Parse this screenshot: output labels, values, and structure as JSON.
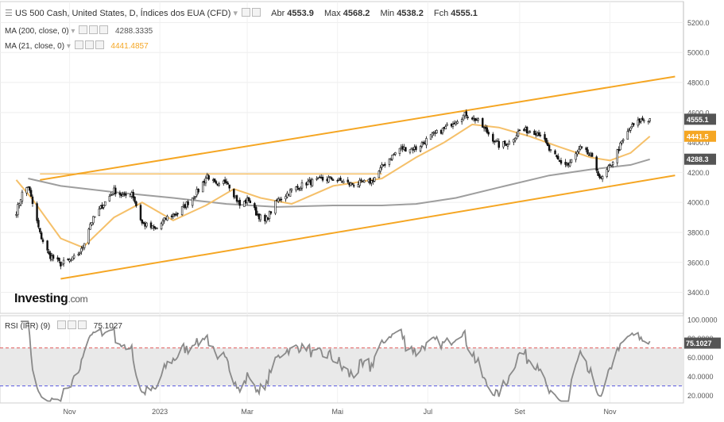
{
  "header": {
    "title": "US 500 Cash, United States, D, Índices dos EUA (CFD)",
    "open_label": "Abr",
    "open_value": "4553.9",
    "high_label": "Max",
    "high_value": "4568.2",
    "low_label": "Min",
    "low_value": "4538.2",
    "close_label": "Fch",
    "close_value": "4555.1"
  },
  "indicators": {
    "ma200": {
      "label": "MA (200, close, 0)",
      "value": "4288.3335",
      "color": "#9e9e9e"
    },
    "ma21": {
      "label": "MA (21, close, 0)",
      "value": "4441.4857",
      "color": "#f5a623"
    },
    "rsi": {
      "label": "RSI (IFR) (9)",
      "value": "75.1027"
    }
  },
  "logo": {
    "brand": "Investing",
    "suffix": ".com"
  },
  "colors": {
    "up": "#ffffff",
    "down": "#111111",
    "channel": "#f5a623",
    "ma21": "#f5c06a",
    "ma200": "#9e9e9e",
    "rsi_line": "#8a8a8a",
    "rsi_band": "#e9e9e9",
    "overbought": "#e05c5c",
    "oversold": "#5c5ce0",
    "price_tag": "#555555"
  },
  "chart_data": [
    {
      "type": "candlestick",
      "name": "US 500 Cash",
      "x_ticks": [
        "Nov",
        "2023",
        "Mar",
        "Mai",
        "Jul",
        "Set",
        "Nov"
      ],
      "y_ticks": [
        3400,
        3600,
        3800,
        4000,
        4200,
        4400,
        4600,
        4800,
        5000,
        5200
      ],
      "ylim": [
        3260,
        5340
      ],
      "price_tags": [
        "4555.1",
        "4441.5",
        "4288.3"
      ],
      "close_path": [
        [
          "2022-09-26",
          3940
        ],
        [
          "2022-09-30",
          4060
        ],
        [
          "2022-10-04",
          4110
        ],
        [
          "2022-10-07",
          3990
        ],
        [
          "2022-10-12",
          3790
        ],
        [
          "2022-10-18",
          3650
        ],
        [
          "2022-10-26",
          3590
        ],
        [
          "2022-11-03",
          3620
        ],
        [
          "2022-11-09",
          3680
        ],
        [
          "2022-11-15",
          3860
        ],
        [
          "2022-11-24",
          3990
        ],
        [
          "2022-12-01",
          4080
        ],
        [
          "2022-12-08",
          4040
        ],
        [
          "2022-12-13",
          4070
        ],
        [
          "2022-12-20",
          3860
        ],
        [
          "2022-12-29",
          3820
        ],
        [
          "2023-01-06",
          3900
        ],
        [
          "2023-01-13",
          3930
        ],
        [
          "2023-01-20",
          4000
        ],
        [
          "2023-01-27",
          4080
        ],
        [
          "2023-02-02",
          4180
        ],
        [
          "2023-02-09",
          4100
        ],
        [
          "2023-02-15",
          4150
        ],
        [
          "2023-02-24",
          3980
        ],
        [
          "2023-03-02",
          4020
        ],
        [
          "2023-03-07",
          3930
        ],
        [
          "2023-03-13",
          3870
        ],
        [
          "2023-03-21",
          4010
        ],
        [
          "2023-03-31",
          4080
        ],
        [
          "2023-04-10",
          4130
        ],
        [
          "2023-04-20",
          4150
        ],
        [
          "2023-04-28",
          4160
        ],
        [
          "2023-05-10",
          4120
        ],
        [
          "2023-05-24",
          4140
        ],
        [
          "2023-06-02",
          4260
        ],
        [
          "2023-06-12",
          4360
        ],
        [
          "2023-06-23",
          4360
        ],
        [
          "2023-07-03",
          4440
        ],
        [
          "2023-07-12",
          4490
        ],
        [
          "2023-07-20",
          4550
        ],
        [
          "2023-07-27",
          4590
        ],
        [
          "2023-08-03",
          4550
        ],
        [
          "2023-08-10",
          4470
        ],
        [
          "2023-08-18",
          4380
        ],
        [
          "2023-08-25",
          4400
        ],
        [
          "2023-09-01",
          4480
        ],
        [
          "2023-09-08",
          4480
        ],
        [
          "2023-09-15",
          4460
        ],
        [
          "2023-09-21",
          4350
        ],
        [
          "2023-09-28",
          4270
        ],
        [
          "2023-10-04",
          4250
        ],
        [
          "2023-10-12",
          4360
        ],
        [
          "2023-10-19",
          4310
        ],
        [
          "2023-10-26",
          4150
        ],
        [
          "2023-11-01",
          4240
        ],
        [
          "2023-11-08",
          4380
        ],
        [
          "2023-11-15",
          4500
        ],
        [
          "2023-11-22",
          4550
        ],
        [
          "2023-11-28",
          4555
        ]
      ],
      "ma21_path": [
        [
          "2022-09-26",
          4150
        ],
        [
          "2022-10-07",
          4020
        ],
        [
          "2022-10-26",
          3760
        ],
        [
          "2022-11-10",
          3700
        ],
        [
          "2022-12-01",
          3900
        ],
        [
          "2022-12-20",
          4000
        ],
        [
          "2023-01-10",
          3880
        ],
        [
          "2023-02-01",
          3980
        ],
        [
          "2023-02-20",
          4090
        ],
        [
          "2023-03-10",
          4030
        ],
        [
          "2023-03-31",
          3990
        ],
        [
          "2023-04-28",
          4110
        ],
        [
          "2023-05-31",
          4160
        ],
        [
          "2023-06-23",
          4300
        ],
        [
          "2023-07-12",
          4400
        ],
        [
          "2023-07-31",
          4520
        ],
        [
          "2023-08-18",
          4500
        ],
        [
          "2023-09-08",
          4440
        ],
        [
          "2023-09-28",
          4370
        ],
        [
          "2023-10-19",
          4300
        ],
        [
          "2023-11-01",
          4280
        ],
        [
          "2023-11-15",
          4330
        ],
        [
          "2023-11-28",
          4441
        ]
      ],
      "ma200_path": [
        [
          "2022-10-04",
          4160
        ],
        [
          "2022-10-26",
          4110
        ],
        [
          "2022-11-30",
          4070
        ],
        [
          "2023-01-10",
          4030
        ],
        [
          "2023-02-15",
          3990
        ],
        [
          "2023-03-21",
          3970
        ],
        [
          "2023-04-28",
          3980
        ],
        [
          "2023-05-31",
          3980
        ],
        [
          "2023-06-23",
          3990
        ],
        [
          "2023-07-20",
          4030
        ],
        [
          "2023-08-18",
          4100
        ],
        [
          "2023-09-21",
          4180
        ],
        [
          "2023-10-19",
          4220
        ],
        [
          "2023-11-15",
          4250
        ],
        [
          "2023-11-28",
          4288
        ]
      ],
      "channel_upper": [
        [
          "2022-10-12",
          4150
        ],
        [
          "2023-12-15",
          4840
        ]
      ],
      "channel_lower": [
        [
          "2022-10-26",
          3490
        ],
        [
          "2023-12-15",
          4180
        ]
      ],
      "horizontal_level": [
        [
          "2022-10-12",
          4190
        ],
        [
          "2023-05-31",
          4190
        ]
      ]
    },
    {
      "type": "line",
      "name": "RSI (IFR) (9)",
      "y_ticks": [
        20,
        40,
        60,
        80,
        100
      ],
      "ylim": [
        12,
        104
      ],
      "overbought": 70,
      "oversold": 30,
      "last_value": "75.1027",
      "x_ticks": [
        "Nov",
        "2023",
        "Mar",
        "Mai",
        "Jul",
        "Set",
        "Nov"
      ]
    }
  ]
}
